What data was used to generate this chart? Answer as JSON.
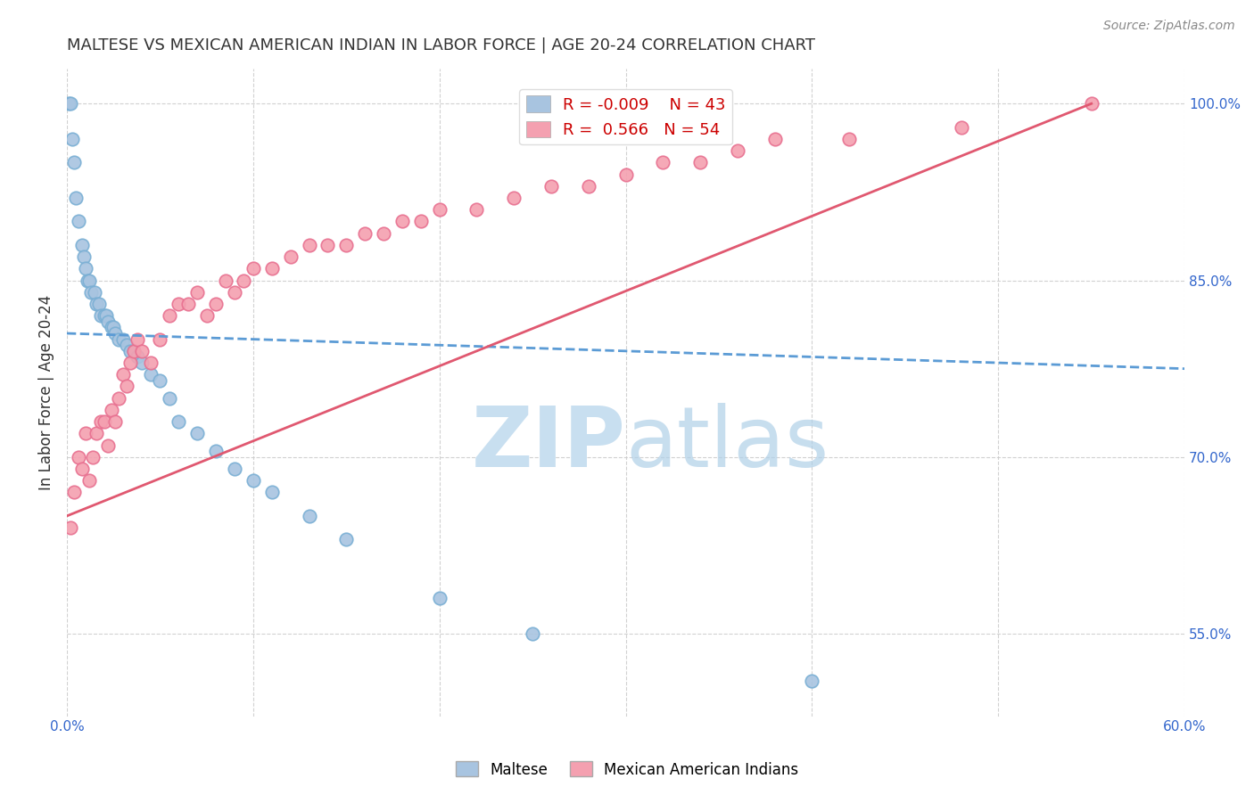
{
  "title": "MALTESE VS MEXICAN AMERICAN INDIAN IN LABOR FORCE | AGE 20-24 CORRELATION CHART",
  "source": "Source: ZipAtlas.com",
  "ylabel": "In Labor Force | Age 20-24",
  "xlim": [
    0.0,
    60.0
  ],
  "ylim": [
    48.0,
    103.0
  ],
  "xticks": [
    0.0,
    10.0,
    20.0,
    30.0,
    40.0,
    50.0,
    60.0
  ],
  "xticklabels": [
    "0.0%",
    "",
    "",
    "",
    "",
    "",
    "60.0%"
  ],
  "yticks_right": [
    55.0,
    70.0,
    85.0,
    100.0
  ],
  "ytick_labels_right": [
    "55.0%",
    "70.0%",
    "85.0%",
    "100.0%"
  ],
  "grid_color": "#cccccc",
  "background_color": "#ffffff",
  "maltese_color": "#a8c4e0",
  "maltese_edge_color": "#7aafd4",
  "mexican_color": "#f4a0b0",
  "mexican_edge_color": "#e87090",
  "maltese_line_color": "#5b9bd5",
  "mexican_line_color": "#e05870",
  "maltese_R": -0.009,
  "maltese_N": 43,
  "mexican_R": 0.566,
  "mexican_N": 54,
  "watermark_zip": "ZIP",
  "watermark_atlas": "atlas",
  "watermark_color": "#c8dff0",
  "maltese_x": [
    0.1,
    0.2,
    0.3,
    0.4,
    0.5,
    0.6,
    0.8,
    0.9,
    1.0,
    1.1,
    1.2,
    1.3,
    1.5,
    1.6,
    1.7,
    1.8,
    2.0,
    2.1,
    2.2,
    2.4,
    2.5,
    2.6,
    2.8,
    3.0,
    3.2,
    3.4,
    3.6,
    3.8,
    4.0,
    4.5,
    5.0,
    5.5,
    6.0,
    7.0,
    8.0,
    9.0,
    10.0,
    11.0,
    13.0,
    15.0,
    20.0,
    25.0,
    40.0
  ],
  "maltese_y": [
    100.0,
    100.0,
    97.0,
    95.0,
    92.0,
    90.0,
    88.0,
    87.0,
    86.0,
    85.0,
    85.0,
    84.0,
    84.0,
    83.0,
    83.0,
    82.0,
    82.0,
    82.0,
    81.5,
    81.0,
    81.0,
    80.5,
    80.0,
    80.0,
    79.5,
    79.0,
    79.0,
    78.5,
    78.0,
    77.0,
    76.5,
    75.0,
    73.0,
    72.0,
    70.5,
    69.0,
    68.0,
    67.0,
    65.0,
    63.0,
    58.0,
    55.0,
    51.0
  ],
  "mexican_x": [
    0.2,
    0.4,
    0.6,
    0.8,
    1.0,
    1.2,
    1.4,
    1.6,
    1.8,
    2.0,
    2.2,
    2.4,
    2.6,
    2.8,
    3.0,
    3.2,
    3.4,
    3.6,
    3.8,
    4.0,
    4.5,
    5.0,
    5.5,
    6.0,
    6.5,
    7.0,
    7.5,
    8.0,
    8.5,
    9.0,
    9.5,
    10.0,
    11.0,
    12.0,
    13.0,
    14.0,
    15.0,
    16.0,
    17.0,
    18.0,
    19.0,
    20.0,
    22.0,
    24.0,
    26.0,
    28.0,
    30.0,
    32.0,
    34.0,
    36.0,
    38.0,
    42.0,
    48.0,
    55.0
  ],
  "mexican_y": [
    64.0,
    67.0,
    70.0,
    69.0,
    72.0,
    68.0,
    70.0,
    72.0,
    73.0,
    73.0,
    71.0,
    74.0,
    73.0,
    75.0,
    77.0,
    76.0,
    78.0,
    79.0,
    80.0,
    79.0,
    78.0,
    80.0,
    82.0,
    83.0,
    83.0,
    84.0,
    82.0,
    83.0,
    85.0,
    84.0,
    85.0,
    86.0,
    86.0,
    87.0,
    88.0,
    88.0,
    88.0,
    89.0,
    89.0,
    90.0,
    90.0,
    91.0,
    91.0,
    92.0,
    93.0,
    93.0,
    94.0,
    95.0,
    95.0,
    96.0,
    97.0,
    97.0,
    98.0,
    100.0
  ]
}
